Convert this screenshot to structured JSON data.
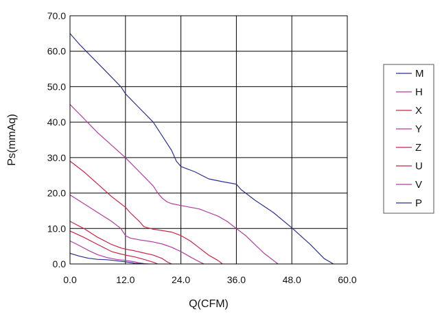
{
  "chart_data": {
    "type": "line",
    "xlabel": "Q(CFM)",
    "ylabel": "Ps(mmAq)",
    "xlim": [
      0,
      60
    ],
    "ylim": [
      0,
      70
    ],
    "xticks": [
      0,
      12,
      24,
      36,
      48,
      60
    ],
    "yticks": [
      0,
      10,
      20,
      30,
      40,
      50,
      60,
      70
    ],
    "xtick_labels": [
      "0.0",
      "12.0",
      "24.0",
      "36.0",
      "48.0",
      "60.0"
    ],
    "ytick_labels": [
      "0.0",
      "10.0",
      "20.0",
      "30.0",
      "40.0",
      "50.0",
      "60.0",
      "70.0"
    ],
    "grid": true,
    "legend_position": "right",
    "series": [
      {
        "name": "M",
        "color": "#2b2f8f",
        "x": [
          0,
          2,
          5,
          8,
          11,
          12,
          15,
          18,
          20,
          22,
          23,
          24,
          25,
          27,
          30,
          33,
          36,
          37,
          40,
          44,
          48,
          52,
          55,
          57
        ],
        "y": [
          65,
          62,
          58,
          54,
          50,
          48,
          44,
          40,
          36,
          32,
          29,
          27.5,
          27,
          26,
          24,
          23.2,
          22.5,
          21,
          18,
          14.5,
          10.2,
          5.5,
          1.5,
          0
        ]
      },
      {
        "name": "H",
        "color": "#b03aa0",
        "x": [
          0,
          3,
          6,
          9,
          12,
          15,
          18,
          19,
          20,
          21,
          22,
          24,
          26,
          28,
          30,
          32,
          34,
          36,
          38,
          40,
          42,
          44,
          45
        ],
        "y": [
          45,
          41,
          37,
          33.5,
          30,
          26,
          22,
          20,
          18.5,
          17.5,
          17,
          16.5,
          16,
          15.5,
          14.5,
          13.5,
          12,
          10,
          8,
          5.5,
          3,
          1,
          0
        ]
      },
      {
        "name": "X",
        "color": "#cc2244",
        "x": [
          0,
          3,
          6,
          9,
          11,
          12,
          13,
          15,
          16,
          18,
          20,
          22,
          24,
          26,
          28,
          30,
          32,
          33
        ],
        "y": [
          29,
          26,
          22.5,
          19,
          17,
          16,
          14.5,
          12,
          10.5,
          9.8,
          9.4,
          9,
          8,
          6.5,
          4.5,
          2.5,
          1,
          0
        ]
      },
      {
        "name": "Y",
        "color": "#b03aa0",
        "x": [
          0,
          3,
          6,
          9,
          11,
          12,
          13,
          15,
          18,
          20,
          22,
          24,
          26,
          28,
          29
        ],
        "y": [
          19.5,
          17,
          14.5,
          12,
          10,
          8,
          7.3,
          6.8,
          6.2,
          5.6,
          4.7,
          3.5,
          2,
          0.6,
          0
        ]
      },
      {
        "name": "Z",
        "color": "#cc2244",
        "x": [
          0,
          3,
          6,
          9,
          11,
          12,
          14,
          16,
          18,
          20,
          21,
          22
        ],
        "y": [
          12,
          10,
          7.5,
          5.5,
          4.5,
          4.2,
          3.7,
          3.1,
          2.5,
          1.5,
          0.6,
          0
        ]
      },
      {
        "name": "U",
        "color": "#cc2244",
        "x": [
          0,
          3,
          6,
          9,
          11,
          12,
          14,
          16,
          18,
          19
        ],
        "y": [
          9.3,
          7.5,
          5.5,
          3.5,
          2.8,
          2.5,
          2,
          1.3,
          0.5,
          0
        ]
      },
      {
        "name": "V",
        "color": "#b03aa0",
        "x": [
          0,
          2,
          4,
          6,
          8,
          10,
          12,
          14,
          15,
          16,
          17
        ],
        "y": [
          6.5,
          5.2,
          3.8,
          2.6,
          1.8,
          1.3,
          1,
          0.6,
          0.3,
          0.1,
          0
        ]
      },
      {
        "name": "P",
        "color": "#2b2f8f",
        "x": [
          0,
          2,
          4,
          6,
          8,
          10,
          12,
          13,
          14,
          15,
          16
        ],
        "y": [
          3,
          2.2,
          1.6,
          1.3,
          1.2,
          0.9,
          0.6,
          0.4,
          0.2,
          0.1,
          0
        ]
      }
    ]
  }
}
